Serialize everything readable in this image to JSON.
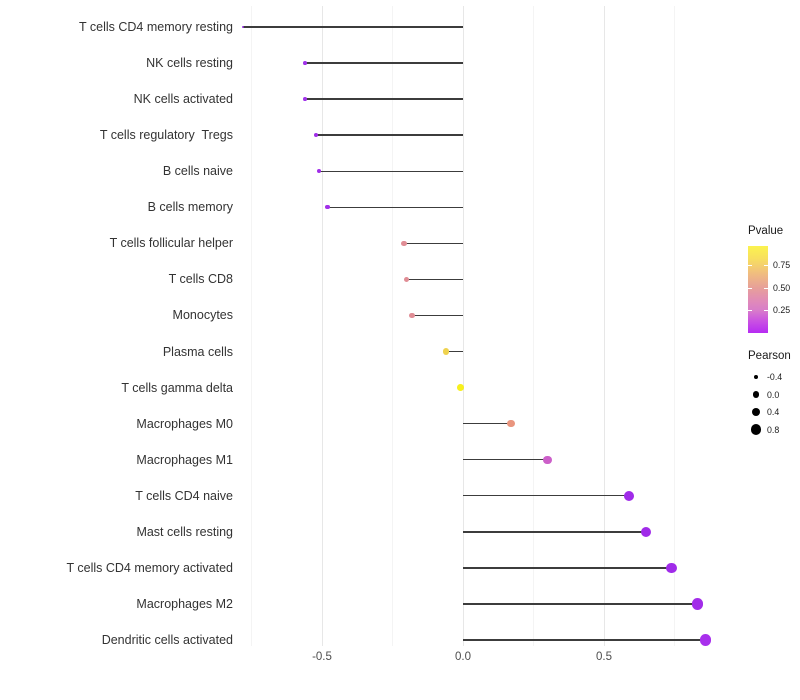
{
  "chart_data": {
    "type": "lollipop",
    "orientation": "horizontal",
    "title": "",
    "xlabel": "",
    "ylabel": "",
    "background_color": "#ffffff",
    "stem_color": "#3c3c3c",
    "grid": true,
    "x_axis": {
      "tick_labels": [
        "-0.5",
        "0.0",
        "0.5"
      ],
      "tick_values": [
        -0.5,
        0.0,
        0.5
      ],
      "minor_gridline_values": [
        -0.75,
        -0.25,
        0.25,
        0.75
      ],
      "range": [
        -0.87,
        0.95
      ]
    },
    "points": [
      {
        "label": "T cells CD4 memory resting",
        "pearson": -0.78,
        "color": "#9932e3"
      },
      {
        "label": "NK cells resting",
        "pearson": -0.56,
        "color": "#a133ea"
      },
      {
        "label": "NK cells activated",
        "pearson": -0.56,
        "color": "#a133ea"
      },
      {
        "label": "T cells regulatory  Tregs",
        "pearson": -0.52,
        "color": "#a02ee8"
      },
      {
        "label": "B cells naive",
        "pearson": -0.51,
        "color": "#a02ee8"
      },
      {
        "label": "B cells memory",
        "pearson": -0.48,
        "color": "#a22fe9"
      },
      {
        "label": "T cells follicular helper",
        "pearson": -0.21,
        "color": "#e08d95"
      },
      {
        "label": "T cells CD8",
        "pearson": -0.2,
        "color": "#e08d95"
      },
      {
        "label": "Monocytes",
        "pearson": -0.18,
        "color": "#e08d95"
      },
      {
        "label": "Plasma cells",
        "pearson": -0.06,
        "color": "#efd24e"
      },
      {
        "label": "T cells gamma delta",
        "pearson": -0.01,
        "color": "#f7f01d"
      },
      {
        "label": "Macrophages M0",
        "pearson": 0.17,
        "color": "#e9957e"
      },
      {
        "label": "Macrophages M1",
        "pearson": 0.3,
        "color": "#cc5fc9"
      },
      {
        "label": "T cells CD4 naive",
        "pearson": 0.59,
        "color": "#a02be9"
      },
      {
        "label": "Mast cells resting",
        "pearson": 0.65,
        "color": "#a02be9"
      },
      {
        "label": "T cells CD4 memory activated",
        "pearson": 0.74,
        "color": "#a02be9"
      },
      {
        "label": "Macrophages M2",
        "pearson": 0.83,
        "color": "#a22ce9"
      },
      {
        "label": "Dendritic cells activated",
        "pearson": 0.86,
        "color": "#a82fec"
      }
    ],
    "legends": {
      "pvalue": {
        "title": "Pvalue",
        "ticks": [
          {
            "label": "0.75",
            "frac_from_top": 0.22
          },
          {
            "label": "0.50",
            "frac_from_top": 0.48
          },
          {
            "label": "0.25",
            "frac_from_top": 0.74
          }
        ],
        "gradient_top_to_bottom": [
          {
            "color": "#fbf34e",
            "pos": "0%"
          },
          {
            "color": "#f8e05e",
            "pos": "14%"
          },
          {
            "color": "#f0bc80",
            "pos": "32%"
          },
          {
            "color": "#e7a099",
            "pos": "48%"
          },
          {
            "color": "#e18cb6",
            "pos": "62%"
          },
          {
            "color": "#d87dca",
            "pos": "74%"
          },
          {
            "color": "#ca52e2",
            "pos": "86%"
          },
          {
            "color": "#b62bf2",
            "pos": "100%"
          }
        ]
      },
      "pearson": {
        "title": "Pearson",
        "dot_color": "#000000",
        "items": [
          {
            "label": "-0.4",
            "value": -0.4
          },
          {
            "label": "0.0",
            "value": 0.0
          },
          {
            "label": "0.4",
            "value": 0.4
          },
          {
            "label": "0.8",
            "value": 0.8
          }
        ]
      }
    }
  }
}
